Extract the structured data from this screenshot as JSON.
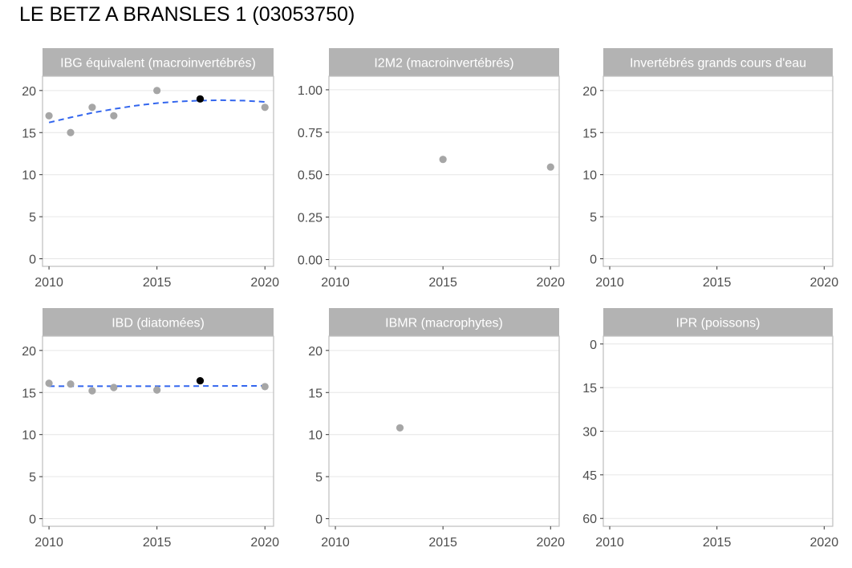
{
  "page": {
    "title": "LE BETZ A BRANSLES 1 (03053750)"
  },
  "colors": {
    "point": "#a6a6a6",
    "highlight": "#000000",
    "trend": "#3366ee",
    "strip": "#b3b3b3",
    "grid": "#e6e6e6",
    "border": "#bfbfbf"
  },
  "chart_data": [
    {
      "type": "scatter",
      "title": "IBG équivalent (macroinvertébrés)",
      "xlim": [
        2009.7,
        2020.4
      ],
      "ylim": [
        -0.9,
        21.7
      ],
      "reverse_y": false,
      "x_ticks": [
        2010,
        2015,
        2020
      ],
      "x_tick_labels": [
        "2010",
        "2015",
        "2020"
      ],
      "y_ticks": [
        0,
        5,
        10,
        15,
        20
      ],
      "y_tick_labels": [
        "0",
        "5",
        "10",
        "15",
        "20"
      ],
      "points": [
        {
          "x": 2010,
          "y": 17
        },
        {
          "x": 2011,
          "y": 15
        },
        {
          "x": 2012,
          "y": 18
        },
        {
          "x": 2013,
          "y": 17
        },
        {
          "x": 2015,
          "y": 20
        },
        {
          "x": 2017,
          "y": 19,
          "highlight": true
        },
        {
          "x": 2020,
          "y": 18
        }
      ],
      "trend": [
        [
          2010,
          16.2
        ],
        [
          2011,
          16.8
        ],
        [
          2012,
          17.35
        ],
        [
          2013,
          17.8
        ],
        [
          2014,
          18.2
        ],
        [
          2015,
          18.5
        ],
        [
          2016,
          18.7
        ],
        [
          2017,
          18.8
        ],
        [
          2018,
          18.85
        ],
        [
          2019,
          18.8
        ],
        [
          2020,
          18.65
        ]
      ]
    },
    {
      "type": "scatter",
      "title": "I2M2 (macroinvertébrés)",
      "xlim": [
        2009.7,
        2020.4
      ],
      "ylim": [
        -0.04,
        1.08
      ],
      "reverse_y": false,
      "x_ticks": [
        2010,
        2015,
        2020
      ],
      "x_tick_labels": [
        "2010",
        "2015",
        "2020"
      ],
      "y_ticks": [
        0,
        0.25,
        0.5,
        0.75,
        1
      ],
      "y_tick_labels": [
        "0.00",
        "0.25",
        "0.50",
        "0.75",
        "1.00"
      ],
      "points": [
        {
          "x": 2015,
          "y": 0.59
        },
        {
          "x": 2020,
          "y": 0.545
        }
      ],
      "trend": []
    },
    {
      "type": "scatter",
      "title": "Invertébrés grands cours d'eau",
      "xlim": [
        2009.7,
        2020.4
      ],
      "ylim": [
        -0.9,
        21.7
      ],
      "reverse_y": false,
      "x_ticks": [
        2010,
        2015,
        2020
      ],
      "x_tick_labels": [
        "2010",
        "2015",
        "2020"
      ],
      "y_ticks": [
        0,
        5,
        10,
        15,
        20
      ],
      "y_tick_labels": [
        "0",
        "5",
        "10",
        "15",
        "20"
      ],
      "points": [],
      "trend": []
    },
    {
      "type": "scatter",
      "title": "IBD (diatomées)",
      "xlim": [
        2009.7,
        2020.4
      ],
      "ylim": [
        -0.9,
        21.7
      ],
      "reverse_y": false,
      "x_ticks": [
        2010,
        2015,
        2020
      ],
      "x_tick_labels": [
        "2010",
        "2015",
        "2020"
      ],
      "y_ticks": [
        0,
        5,
        10,
        15,
        20
      ],
      "y_tick_labels": [
        "0",
        "5",
        "10",
        "15",
        "20"
      ],
      "points": [
        {
          "x": 2010,
          "y": 16.1
        },
        {
          "x": 2011,
          "y": 16.0
        },
        {
          "x": 2012,
          "y": 15.2
        },
        {
          "x": 2013,
          "y": 15.6
        },
        {
          "x": 2015,
          "y": 15.3
        },
        {
          "x": 2017,
          "y": 16.4,
          "highlight": true
        },
        {
          "x": 2020,
          "y": 15.7
        }
      ],
      "trend": [
        [
          2010,
          15.75
        ],
        [
          2015,
          15.75
        ],
        [
          2020,
          15.8
        ]
      ]
    },
    {
      "type": "scatter",
      "title": "IBMR (macrophytes)",
      "xlim": [
        2009.7,
        2020.4
      ],
      "ylim": [
        -0.9,
        21.7
      ],
      "reverse_y": false,
      "x_ticks": [
        2010,
        2015,
        2020
      ],
      "x_tick_labels": [
        "2010",
        "2015",
        "2020"
      ],
      "y_ticks": [
        0,
        5,
        10,
        15,
        20
      ],
      "y_tick_labels": [
        "0",
        "5",
        "10",
        "15",
        "20"
      ],
      "points": [
        {
          "x": 2013,
          "y": 10.8
        }
      ],
      "trend": []
    },
    {
      "type": "scatter",
      "title": "IPR (poissons)",
      "xlim": [
        2009.7,
        2020.4
      ],
      "ylim": [
        -2.7,
        62.7
      ],
      "reverse_y": true,
      "x_ticks": [
        2010,
        2015,
        2020
      ],
      "x_tick_labels": [
        "2010",
        "2015",
        "2020"
      ],
      "y_ticks": [
        0,
        15,
        30,
        45,
        60
      ],
      "y_tick_labels": [
        "0",
        "15",
        "30",
        "45",
        "60"
      ],
      "points": [],
      "trend": []
    }
  ]
}
